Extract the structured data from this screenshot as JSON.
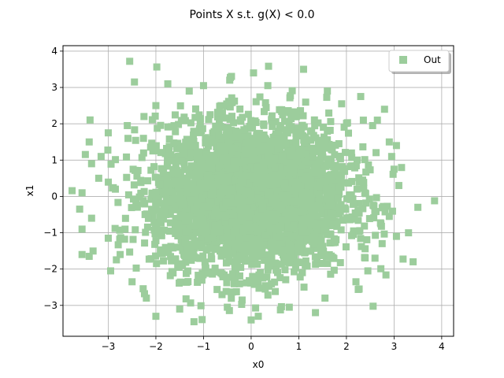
{
  "chart_data": {
    "type": "scatter",
    "title": "Points X s.t. g(X) < 0.0",
    "xlabel": "x0",
    "ylabel": "x1",
    "xlim": [
      -3.95,
      4.25
    ],
    "ylim": [
      -3.85,
      4.15
    ],
    "grid": true,
    "legend_placement": "top-right",
    "marker": "square",
    "color": "#9ccd9c",
    "x_ticks": [
      -3,
      -2,
      -1,
      0,
      1,
      2,
      3,
      4
    ],
    "y_ticks": [
      -3,
      -2,
      -1,
      0,
      1,
      2,
      3,
      4
    ],
    "x_tick_labels": [
      "−3",
      "−2",
      "−1",
      "0",
      "1",
      "2",
      "3",
      "4"
    ],
    "y_tick_labels": [
      "−3",
      "−2",
      "−1",
      "0",
      "1",
      "2",
      "3",
      "4"
    ],
    "series": [
      {
        "name": "Out",
        "distribution": "approximately standard bivariate normal, ~5000 points",
        "points": [
          {
            "x": -2.55,
            "y": 3.72
          },
          {
            "x": 0.05,
            "y": 3.4
          },
          {
            "x": 1.1,
            "y": 3.5
          },
          {
            "x": -0.45,
            "y": 3.2
          },
          {
            "x": -1.0,
            "y": 3.05
          },
          {
            "x": 0.35,
            "y": 3.05
          },
          {
            "x": -2.45,
            "y": 3.15
          },
          {
            "x": -1.75,
            "y": 3.1
          },
          {
            "x": 2.3,
            "y": 2.75
          },
          {
            "x": 2.8,
            "y": 2.4
          },
          {
            "x": -2.25,
            "y": 2.2
          },
          {
            "x": -2.0,
            "y": 2.5
          },
          {
            "x": 1.9,
            "y": 2.55
          },
          {
            "x": -3.0,
            "y": 1.75
          },
          {
            "x": -2.6,
            "y": 1.95
          },
          {
            "x": 2.55,
            "y": 1.95
          },
          {
            "x": -3.4,
            "y": 1.5
          },
          {
            "x": 3.05,
            "y": 1.4
          },
          {
            "x": 2.95,
            "y": 1.1
          },
          {
            "x": -3.15,
            "y": 1.1
          },
          {
            "x": -3.35,
            "y": 0.9
          },
          {
            "x": 3.0,
            "y": 0.75
          },
          {
            "x": -3.2,
            "y": 0.5
          },
          {
            "x": 3.1,
            "y": 0.3
          },
          {
            "x": -3.55,
            "y": 0.1
          },
          {
            "x": 3.85,
            "y": -0.12
          },
          {
            "x": 3.5,
            "y": -0.3
          },
          {
            "x": -3.6,
            "y": -0.35
          },
          {
            "x": -3.35,
            "y": -0.6
          },
          {
            "x": 2.9,
            "y": -0.55
          },
          {
            "x": -3.55,
            "y": -0.9
          },
          {
            "x": 3.05,
            "y": -1.1
          },
          {
            "x": -3.0,
            "y": -1.15
          },
          {
            "x": 2.75,
            "y": -1.3
          },
          {
            "x": -3.55,
            "y": -1.6
          },
          {
            "x": -3.4,
            "y": -1.65
          },
          {
            "x": 2.6,
            "y": -1.7
          },
          {
            "x": 3.4,
            "y": -1.8
          },
          {
            "x": -2.95,
            "y": -2.05
          },
          {
            "x": 2.45,
            "y": -2.05
          },
          {
            "x": -2.5,
            "y": -2.35
          },
          {
            "x": 2.2,
            "y": -2.35
          },
          {
            "x": -2.2,
            "y": -2.8
          },
          {
            "x": 1.55,
            "y": -2.8
          },
          {
            "x": -2.0,
            "y": -3.3
          },
          {
            "x": -1.5,
            "y": -3.1
          },
          {
            "x": -1.2,
            "y": -3.45
          },
          {
            "x": 0.0,
            "y": -3.4
          },
          {
            "x": 0.15,
            "y": -3.3
          },
          {
            "x": -0.5,
            "y": -3.05
          },
          {
            "x": 1.35,
            "y": -3.2
          },
          {
            "x": 0.8,
            "y": -3.05
          },
          {
            "x": -2.75,
            "y": -1.6
          },
          {
            "x": 2.9,
            "y": 1.5
          },
          {
            "x": -2.85,
            "y": 0.2
          },
          {
            "x": 2.65,
            "y": 2.1
          },
          {
            "x": 1.6,
            "y": 2.9
          },
          {
            "x": -1.3,
            "y": 2.9
          }
        ]
      }
    ]
  }
}
